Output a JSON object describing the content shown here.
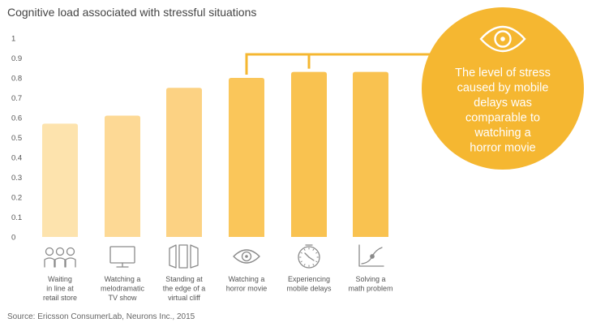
{
  "title": "Cognitive load associated with stressful situations",
  "source": "Source: Ericsson ConsumerLab, Neurons Inc., 2015",
  "callout": {
    "icon": "eye-icon",
    "lines": [
      "The level of stress",
      "caused by mobile",
      "delays was",
      "comparable to",
      "watching a",
      "horror movie"
    ],
    "color": "#f5b731"
  },
  "chart_data": {
    "type": "bar",
    "title": "Cognitive load associated with stressful situations",
    "xlabel": "",
    "ylabel": "",
    "ylim": [
      0,
      1
    ],
    "yticks": [
      "0",
      "0.1",
      "0.2",
      "0.3",
      "0.4",
      "0.5",
      "0.6",
      "0.7",
      "0.8",
      "0.9",
      "1"
    ],
    "categories": [
      {
        "lines": [
          "Waiting",
          "in line at",
          "retail store"
        ],
        "icon": "people-queue-icon"
      },
      {
        "lines": [
          "Watching a",
          "melodramatic",
          "TV show"
        ],
        "icon": "tv-icon"
      },
      {
        "lines": [
          "Standing at",
          "the edge of a",
          "virtual cliff"
        ],
        "icon": "cliff-panels-icon"
      },
      {
        "lines": [
          "Watching a",
          "horror movie"
        ],
        "icon": "eye-icon"
      },
      {
        "lines": [
          "Experiencing",
          "mobile delays"
        ],
        "icon": "clock-icon"
      },
      {
        "lines": [
          "Solving a",
          "math problem"
        ],
        "icon": "graph-icon"
      }
    ],
    "values": [
      0.57,
      0.61,
      0.75,
      0.8,
      0.83,
      0.83
    ],
    "colors": [
      "#fde3ad",
      "#fdd995",
      "#fcd283",
      "#fac65a",
      "#f9c250",
      "#f9c250"
    ],
    "grid": false,
    "legend": "none"
  }
}
